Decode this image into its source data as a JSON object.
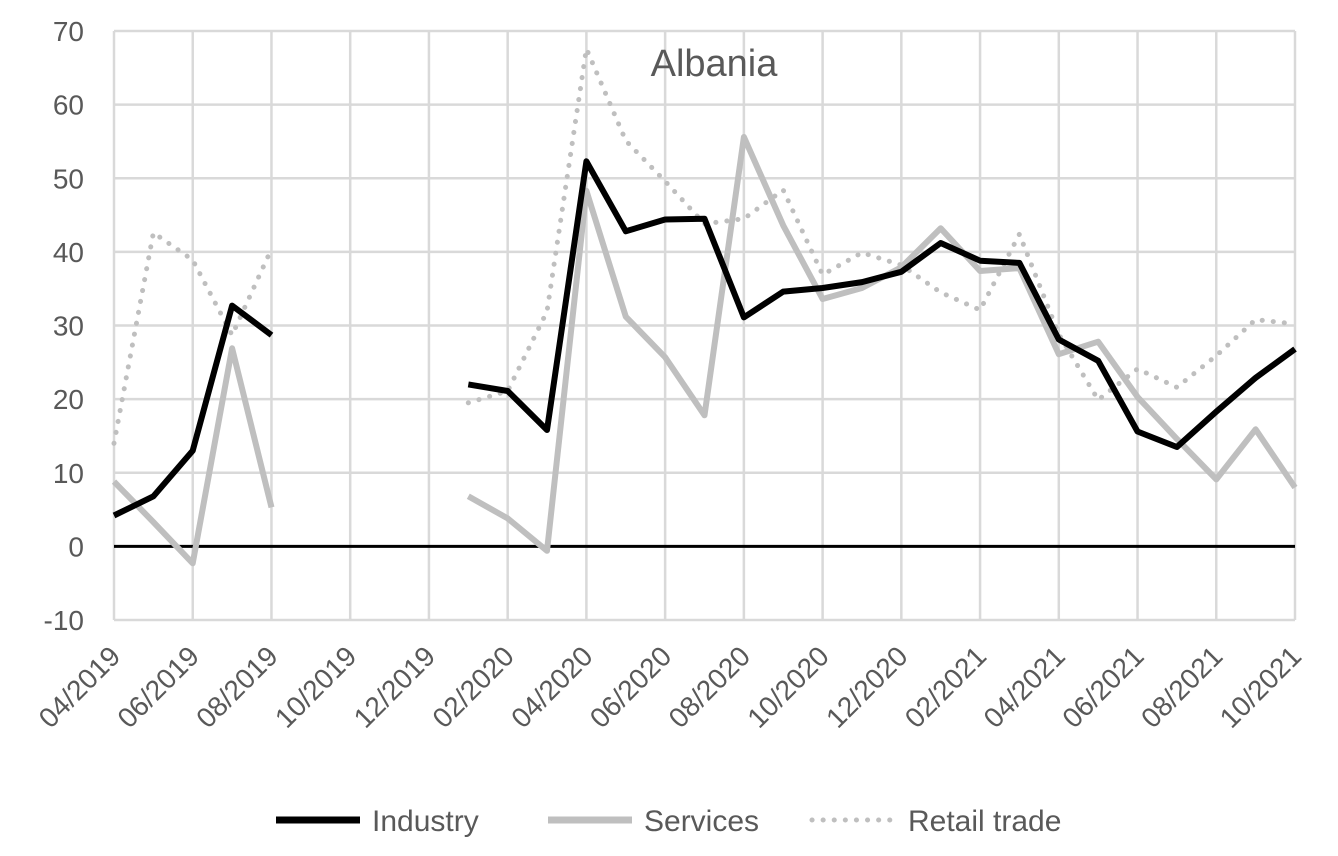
{
  "chart_data": {
    "type": "line",
    "title": "Albania",
    "xlabel": "",
    "ylabel": "",
    "ylim": [
      -10,
      70
    ],
    "yticks": [
      -10,
      0,
      10,
      20,
      30,
      40,
      50,
      60,
      70
    ],
    "grid": true,
    "legend_position": "bottom",
    "x": [
      "04/2019",
      "05/2019",
      "06/2019",
      "07/2019",
      "08/2019",
      "09/2019",
      "10/2019",
      "11/2019",
      "12/2019",
      "01/2020",
      "02/2020",
      "03/2020",
      "04/2020",
      "05/2020",
      "06/2020",
      "07/2020",
      "08/2020",
      "09/2020",
      "10/2020",
      "11/2020",
      "12/2020",
      "01/2021",
      "02/2021",
      "03/2021",
      "04/2021",
      "05/2021",
      "06/2021",
      "07/2021",
      "08/2021",
      "09/2021",
      "10/2021"
    ],
    "x_tick_labels": [
      "04/2019",
      "06/2019",
      "08/2019",
      "10/2019",
      "12/2019",
      "02/2020",
      "04/2020",
      "06/2020",
      "08/2020",
      "10/2020",
      "12/2020",
      "02/2021",
      "04/2021",
      "06/2021",
      "08/2021",
      "10/2021"
    ],
    "series": [
      {
        "name": "Industry",
        "color": "#000000",
        "style": "solid",
        "values": [
          4.2,
          6.8,
          13.0,
          32.7,
          28.7,
          null,
          null,
          null,
          null,
          22.0,
          21.1,
          15.8,
          52.3,
          42.8,
          44.4,
          44.5,
          31.1,
          34.6,
          35.1,
          35.9,
          37.3,
          41.2,
          38.8,
          38.5,
          28.1,
          25.2,
          15.6,
          13.5,
          18.3,
          22.9,
          26.8
        ]
      },
      {
        "name": "Services",
        "color": "#bfbfbf",
        "style": "solid",
        "values": [
          8.8,
          3.3,
          -2.3,
          26.9,
          5.3,
          null,
          null,
          null,
          null,
          6.8,
          3.8,
          -0.6,
          48.3,
          31.2,
          25.7,
          17.8,
          55.6,
          43.6,
          33.6,
          35.1,
          37.9,
          43.2,
          37.4,
          37.8,
          26.1,
          27.8,
          20.3,
          14.6,
          9.1,
          15.9,
          8.0
        ]
      },
      {
        "name": "Retail trade",
        "color": "#bfbfbf",
        "style": "dotted",
        "values": [
          14.0,
          42.6,
          38.9,
          28.7,
          40.4,
          null,
          null,
          null,
          null,
          19.5,
          21.1,
          31.9,
          67.6,
          55.1,
          49.6,
          43.8,
          44.5,
          48.4,
          36.9,
          39.9,
          38.2,
          34.5,
          32.1,
          42.4,
          28.8,
          19.9,
          24.1,
          21.6,
          25.9,
          30.8,
          30.2
        ]
      }
    ]
  }
}
